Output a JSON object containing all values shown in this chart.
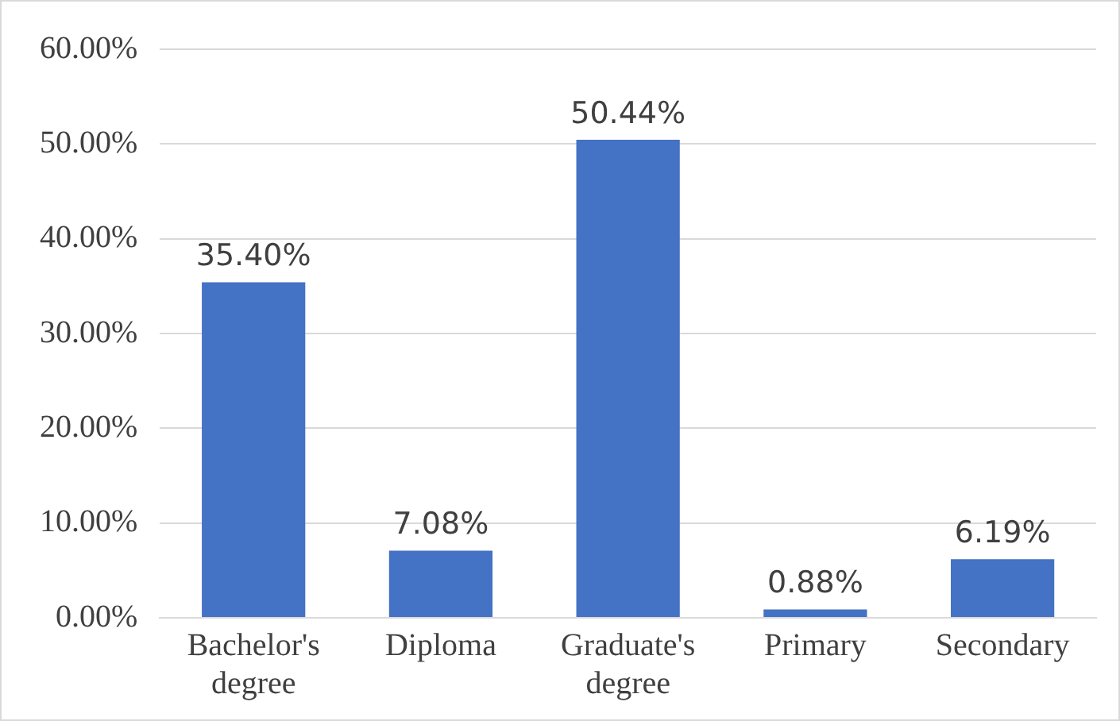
{
  "chart_data": {
    "type": "bar",
    "categories": [
      "Bachelor's degree",
      "Diploma",
      "Graduate's degree",
      "Primary",
      "Secondary"
    ],
    "values": [
      35.4,
      7.08,
      50.44,
      0.88,
      6.19
    ],
    "value_labels": [
      "35.40%",
      "7.08%",
      "50.44%",
      "0.88%",
      "6.19%"
    ],
    "color": "#4472c4",
    "ylim": [
      0,
      60
    ],
    "yticks": [
      {
        "value": 0,
        "label": "0.00%"
      },
      {
        "value": 10,
        "label": "10.00%"
      },
      {
        "value": 20,
        "label": "20.00%"
      },
      {
        "value": 30,
        "label": "30.00%"
      },
      {
        "value": 40,
        "label": "40.00%"
      },
      {
        "value": 50,
        "label": "50.00%"
      },
      {
        "value": 60,
        "label": "60.00%"
      }
    ],
    "grid": "y"
  }
}
